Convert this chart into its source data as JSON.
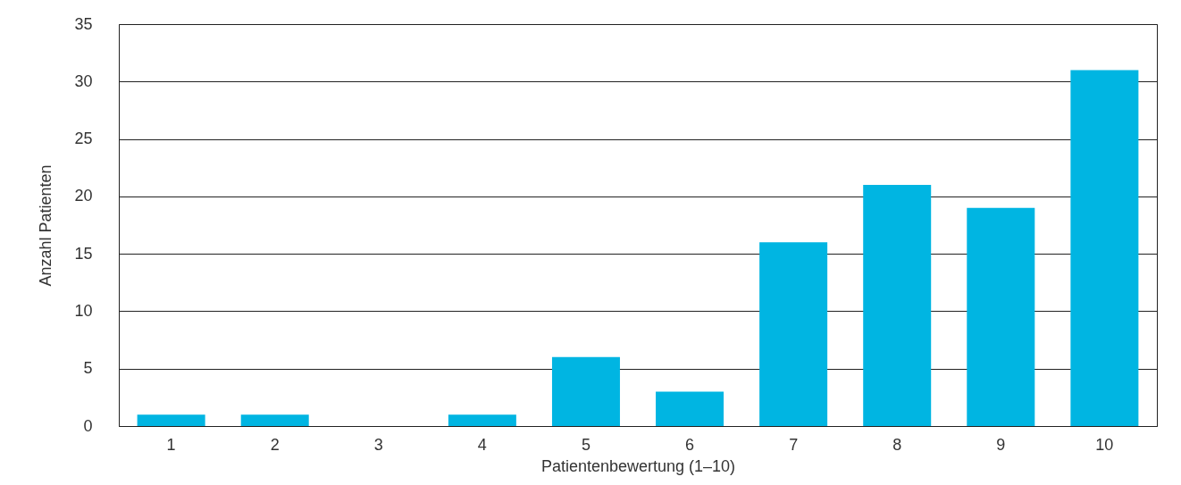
{
  "chart_data": {
    "type": "bar",
    "xlabel": "Patientenbewertung (1–10)",
    "ylabel": "Anzahl Patienten",
    "categories": [
      "1",
      "2",
      "3",
      "4",
      "5",
      "6",
      "7",
      "8",
      "9",
      "10"
    ],
    "values": [
      1,
      1,
      0,
      1,
      6,
      3,
      16,
      21,
      19,
      31
    ],
    "color": "#00b5e2",
    "ylim": [
      0,
      35
    ],
    "yticks": [
      0,
      5,
      10,
      15,
      20,
      25,
      30,
      35
    ],
    "grid": "y"
  }
}
